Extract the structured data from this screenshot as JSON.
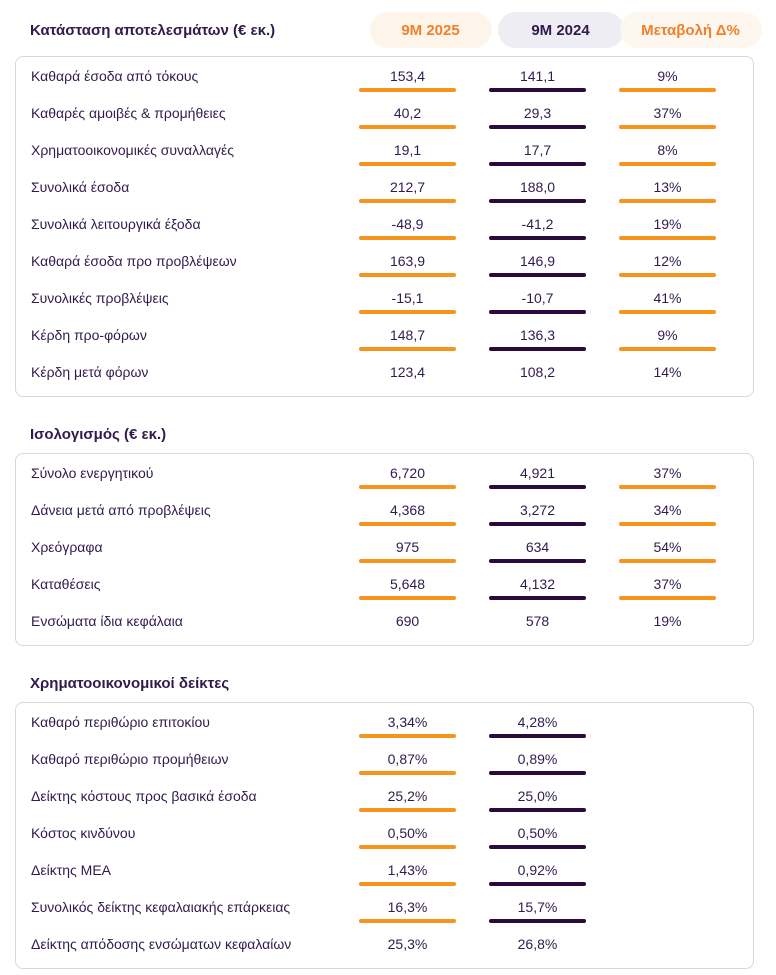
{
  "header": {
    "columns": [
      {
        "label": "9M 2025",
        "text_color": "#f0802c",
        "bg_color": "#fdf5ea"
      },
      {
        "label": "9M 2024",
        "text_color": "#311b4d",
        "bg_color": "#ededf3"
      },
      {
        "label": "Μεταβολή Δ%",
        "text_color": "#f0802c",
        "bg_color": "#fdf7ef"
      }
    ]
  },
  "colors": {
    "accent_orange": "#f7941d",
    "accent_purple_dark": "#2a0b3b",
    "text_purple": "#311b4d",
    "card_border": "#d8d8d8",
    "background": "#ffffff"
  },
  "chart_data": [
    {
      "type": "table",
      "title": "Κατάσταση αποτελεσμάτων (€ εκ.)",
      "columns": [
        "",
        "9M 2025",
        "9M 2024",
        "Μεταβολή Δ%"
      ],
      "rows": [
        [
          "Καθαρά έσοδα από τόκους",
          "153,4",
          "141,1",
          "9%"
        ],
        [
          "Καθαρές αμοιβές & προμήθειες",
          "40,2",
          "29,3",
          "37%"
        ],
        [
          "Χρηματοοικονομικές συναλλαγές",
          "19,1",
          "17,7",
          "8%"
        ],
        [
          "Συνολικά έσοδα",
          "212,7",
          "188,0",
          "13%"
        ],
        [
          "Συνολικά λειτουργικά έξοδα",
          "-48,9",
          "-41,2",
          "19%"
        ],
        [
          "Καθαρά έσοδα προ προβλέψεων",
          "163,9",
          "146,9",
          "12%"
        ],
        [
          "Συνολικές προβλέψεις",
          "-15,1",
          "-10,7",
          "41%"
        ],
        [
          "Κέρδη προ-φόρων",
          "148,7",
          "136,3",
          "9%"
        ],
        [
          "Κέρδη μετά φόρων",
          "123,4",
          "108,2",
          "14%"
        ]
      ]
    },
    {
      "type": "table",
      "title": "Ισολογισμός (€ εκ.)",
      "columns": [
        "",
        "9M 2025",
        "9M 2024",
        "Μεταβολή Δ%"
      ],
      "rows": [
        [
          "Σύνολο ενεργητικού",
          "6,720",
          "4,921",
          "37%"
        ],
        [
          "Δάνεια μετά από προβλέψεις",
          "4,368",
          "3,272",
          "34%"
        ],
        [
          "Χρεόγραφα",
          "975",
          "634",
          "54%"
        ],
        [
          "Καταθέσεις",
          "5,648",
          "4,132",
          "37%"
        ],
        [
          "Ενσώματα ίδια κεφάλαια",
          "690",
          "578",
          "19%"
        ]
      ]
    },
    {
      "type": "table",
      "title": "Χρηματοοικονομικοί δείκτες",
      "columns": [
        "",
        "9M 2025",
        "9M 2024",
        ""
      ],
      "rows": [
        [
          "Καθαρό περιθώριο επιτοκίου",
          "3,34%",
          "4,28%",
          null
        ],
        [
          "Καθαρό περιθώριο προμήθειων",
          "0,87%",
          "0,89%",
          null
        ],
        [
          "Δείκτης κόστους προς βασικά έσοδα",
          "25,2%",
          "25,0%",
          null
        ],
        [
          "Κόστος κινδύνου",
          "0,50%",
          "0,50%",
          null
        ],
        [
          "Δείκτης ΜΕΑ",
          "1,43%",
          "0,92%",
          null
        ],
        [
          "Συνολικός δείκτης κεφαλαιακής επάρκειας",
          "16,3%",
          "15,7%",
          null
        ],
        [
          "Δείκτης απόδοσης ενσώματων κεφαλαίων",
          "25,3%",
          "26,8%",
          null
        ]
      ]
    }
  ]
}
